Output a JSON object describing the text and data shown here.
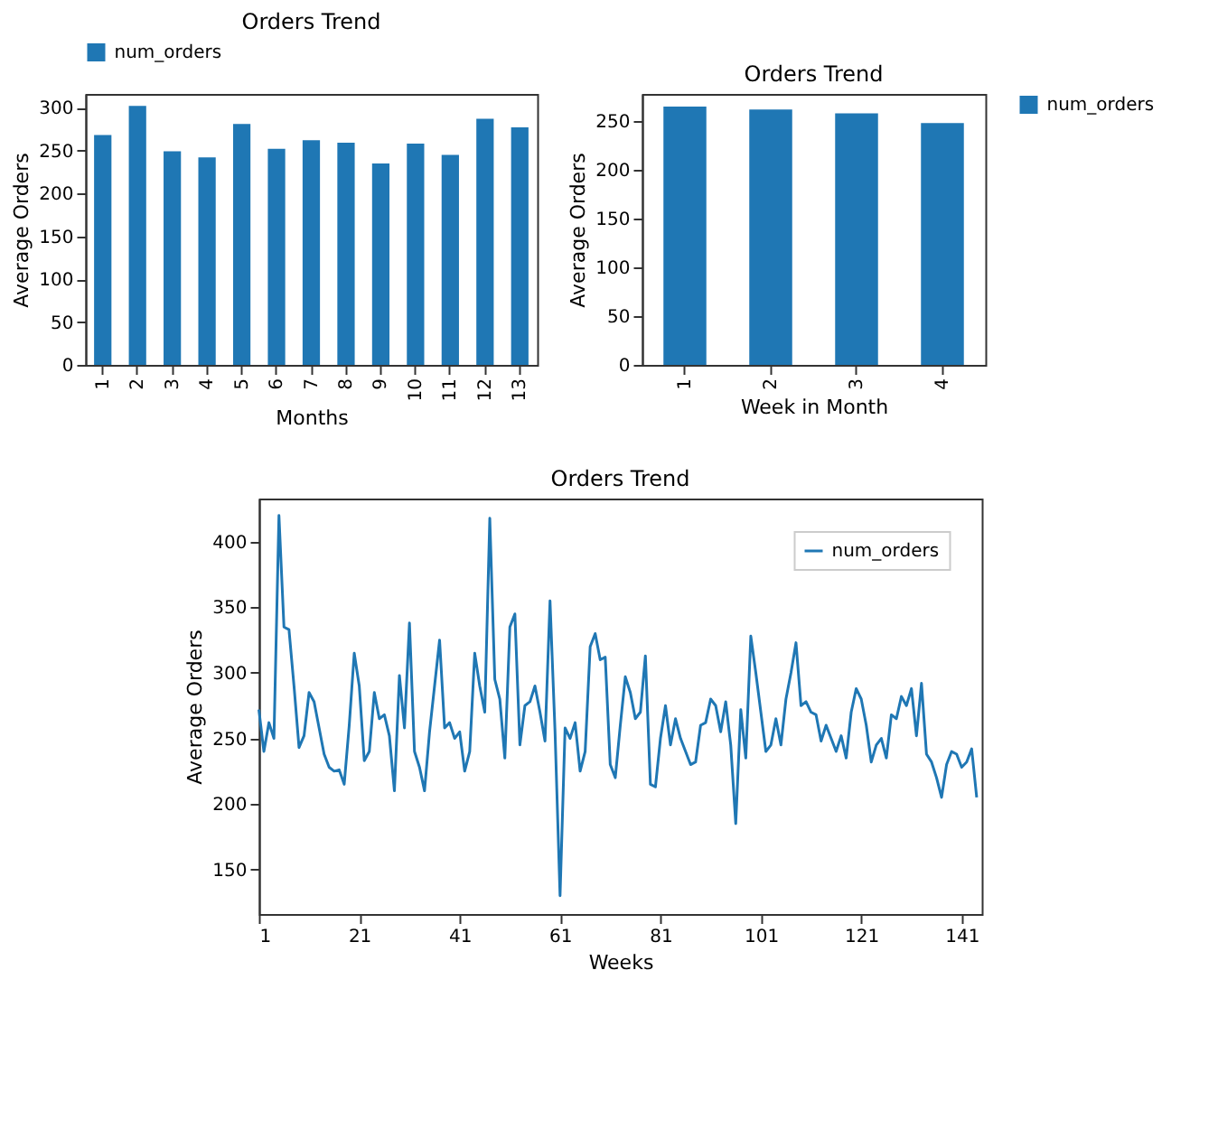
{
  "chart_data": [
    {
      "type": "bar",
      "title": "Orders Trend",
      "xlabel": "Months",
      "ylabel": "Average Orders",
      "categories": [
        "1",
        "2",
        "3",
        "4",
        "5",
        "6",
        "7",
        "8",
        "9",
        "10",
        "11",
        "12",
        "13"
      ],
      "series": [
        {
          "name": "num_orders",
          "color": "#1f77b4",
          "values": [
            268,
            302,
            249,
            242,
            281,
            252,
            262,
            259,
            235,
            258,
            245,
            287,
            277
          ]
        }
      ],
      "ylim": [
        0,
        316
      ],
      "yticks": [
        0,
        50,
        100,
        150,
        200,
        250,
        300
      ],
      "grid": false,
      "legend": "top"
    },
    {
      "type": "bar",
      "title": "Orders Trend",
      "xlabel": "Week in Month",
      "ylabel": "Average Orders",
      "categories": [
        "1",
        "2",
        "3",
        "4"
      ],
      "series": [
        {
          "name": "num_orders",
          "color": "#1f77b4",
          "values": [
            265,
            262,
            258,
            248
          ]
        }
      ],
      "ylim": [
        0,
        278
      ],
      "yticks": [
        0,
        50,
        100,
        150,
        200,
        250
      ],
      "grid": false,
      "legend": "right"
    },
    {
      "type": "line",
      "title": "Orders Trend",
      "xlabel": "Weeks",
      "ylabel": "Average Orders",
      "series": [
        {
          "name": "num_orders",
          "color": "#1f77b4",
          "x": [
            1,
            2,
            3,
            4,
            5,
            6,
            7,
            8,
            9,
            10,
            11,
            12,
            13,
            14,
            15,
            16,
            17,
            18,
            19,
            20,
            21,
            22,
            23,
            24,
            25,
            26,
            27,
            28,
            29,
            30,
            31,
            32,
            33,
            34,
            35,
            36,
            37,
            38,
            39,
            40,
            41,
            42,
            43,
            44,
            45,
            46,
            47,
            48,
            49,
            50,
            51,
            52,
            53,
            54,
            55,
            56,
            57,
            58,
            59,
            60,
            61,
            62,
            63,
            64,
            65,
            66,
            67,
            68,
            69,
            70,
            71,
            72,
            73,
            74,
            75,
            76,
            77,
            78,
            79,
            80,
            81,
            82,
            83,
            84,
            85,
            86,
            87,
            88,
            89,
            90,
            91,
            92,
            93,
            94,
            95,
            96,
            97,
            98,
            99,
            100,
            101,
            102,
            103,
            104,
            105,
            106,
            107,
            108,
            109,
            110,
            111,
            112,
            113,
            114,
            115,
            116,
            117,
            118,
            119,
            120,
            121,
            122,
            123,
            124,
            125,
            126,
            127,
            128,
            129,
            130,
            131,
            132,
            133,
            134,
            135,
            136,
            137,
            138,
            139,
            140,
            141,
            142,
            143,
            144
          ],
          "values": [
            272,
            240,
            262,
            250,
            420,
            335,
            333,
            290,
            243,
            252,
            285,
            278,
            258,
            238,
            228,
            225,
            226,
            215,
            260,
            315,
            290,
            233,
            240,
            285,
            265,
            268,
            252,
            210,
            298,
            258,
            338,
            240,
            228,
            210,
            255,
            290,
            325,
            258,
            262,
            250,
            255,
            225,
            240,
            315,
            290,
            270,
            418,
            295,
            280,
            235,
            335,
            345,
            245,
            275,
            278,
            290,
            270,
            248,
            355,
            255,
            130,
            258,
            250,
            262,
            225,
            240,
            320,
            330,
            310,
            312,
            230,
            220,
            260,
            297,
            285,
            265,
            270,
            313,
            215,
            213,
            250,
            275,
            245,
            265,
            250,
            240,
            230,
            232,
            260,
            262,
            280,
            275,
            255,
            278,
            245,
            185,
            272,
            235,
            328,
            300,
            270,
            240,
            245,
            265,
            245,
            280,
            300,
            323,
            275,
            278,
            270,
            268,
            248,
            260,
            250,
            240,
            252,
            235,
            270,
            288,
            280,
            260,
            232,
            245,
            250,
            235,
            268,
            265,
            282,
            275,
            288,
            252,
            292,
            238,
            232,
            220,
            205,
            230,
            240,
            238,
            228,
            232,
            242,
            205
          ]
        }
      ],
      "xlim": [
        1,
        145
      ],
      "xticks": [
        1,
        21,
        41,
        61,
        81,
        101,
        121,
        141
      ],
      "ylim": [
        116,
        433
      ],
      "yticks": [
        150,
        200,
        250,
        300,
        350,
        400
      ],
      "grid": false,
      "legend": "top right",
      "marker": "none",
      "line_style": "solid"
    }
  ]
}
